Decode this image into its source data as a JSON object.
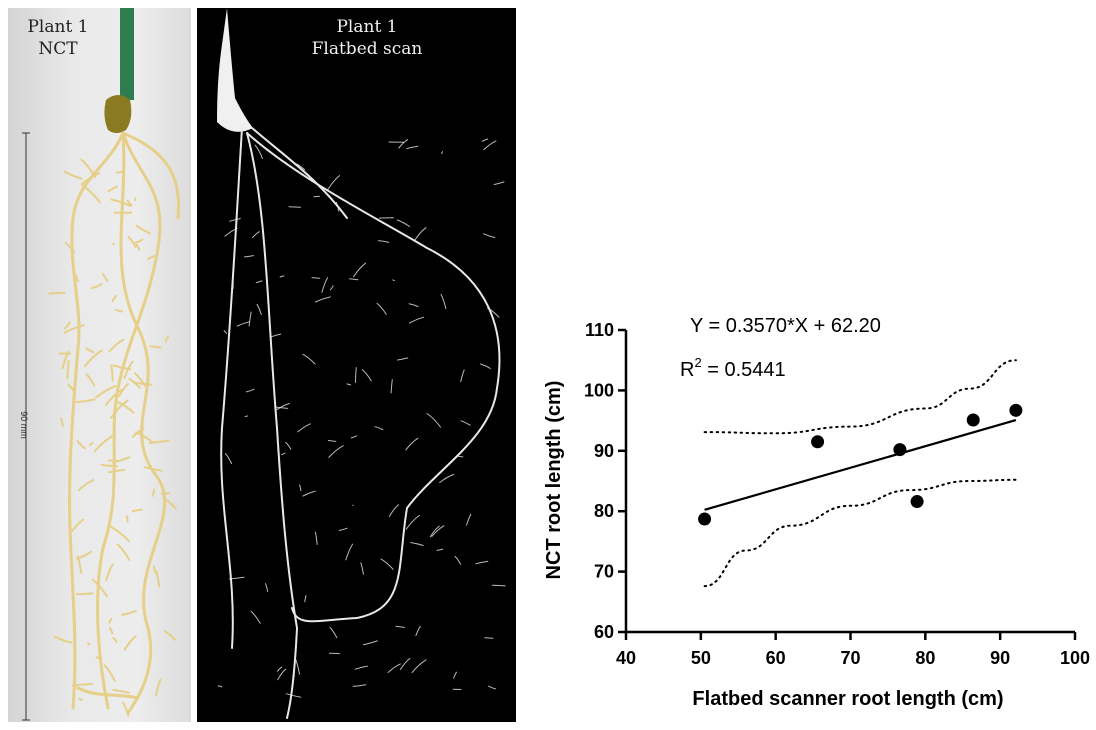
{
  "panels": {
    "nct": {
      "title_line1": "Plant 1",
      "title_line2": "NCT",
      "scale_label": "90 mm"
    },
    "scan": {
      "title_line1": "Plant 1",
      "title_line2": "Flatbed scan"
    }
  },
  "colors": {
    "stem": "#2e7d4f",
    "seed": "#8a7a22",
    "root_nct": "#e6cf88",
    "root_scan": "#e8e8e8",
    "points": "#000000"
  },
  "chart_data": {
    "type": "scatter",
    "xlabel": "Flatbed scanner root length (cm)",
    "ylabel": "NCT root length (cm)",
    "xlim": [
      40,
      100
    ],
    "ylim": [
      60,
      110
    ],
    "xticks": [
      40,
      50,
      60,
      70,
      80,
      90,
      100
    ],
    "yticks": [
      60,
      70,
      80,
      90,
      100,
      110
    ],
    "points": [
      {
        "x": 50.5,
        "y": 78.7
      },
      {
        "x": 65.6,
        "y": 91.5
      },
      {
        "x": 76.6,
        "y": 90.2
      },
      {
        "x": 78.9,
        "y": 81.6
      },
      {
        "x": 86.4,
        "y": 95.1
      },
      {
        "x": 92.1,
        "y": 96.7
      }
    ],
    "fit": {
      "slope": 0.357,
      "intercept": 62.2,
      "x_range": [
        50.5,
        92.1
      ]
    },
    "ci_upper": [
      [
        50.5,
        93.1
      ],
      [
        60,
        92.9
      ],
      [
        70,
        94.0
      ],
      [
        80,
        97.0
      ],
      [
        86,
        100.3
      ],
      [
        92.1,
        105.0
      ]
    ],
    "ci_lower": [
      [
        50.5,
        67.6
      ],
      [
        56,
        73.5
      ],
      [
        62,
        77.6
      ],
      [
        70,
        80.9
      ],
      [
        78,
        83.5
      ],
      [
        86,
        85.0
      ],
      [
        92.1,
        85.2
      ]
    ],
    "annotations": {
      "equation": "Y = 0.3570*X + 62.20",
      "r2_prefix": "R",
      "r2_sup": "2",
      "r2_value": " = 0.5441"
    },
    "grid": false,
    "legend": "none"
  }
}
